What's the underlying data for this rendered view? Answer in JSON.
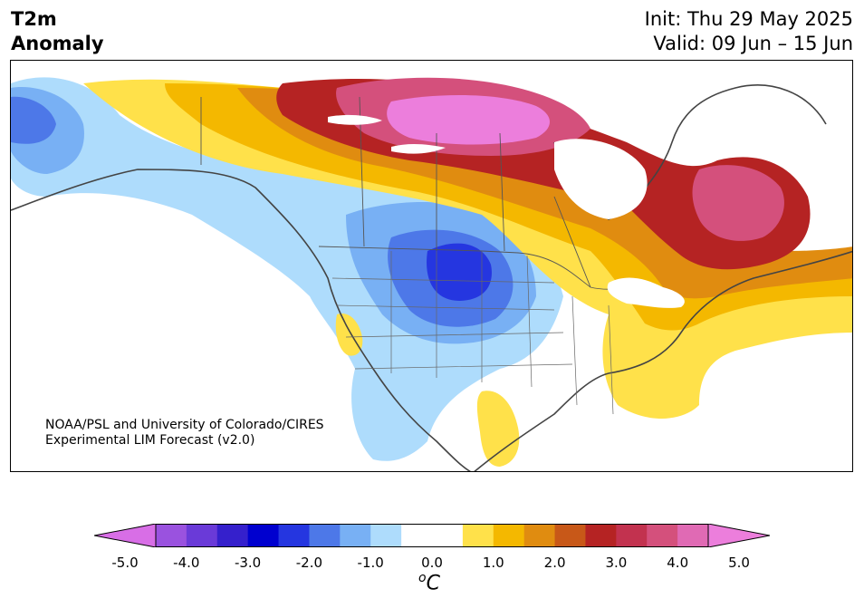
{
  "header": {
    "variable": "T2m",
    "subtitle": "Anomaly",
    "init": "Init: Thu 29 May 2025",
    "valid": "Valid: 09 Jun – 15 Jun"
  },
  "credit": {
    "line1": "NOAA/PSL and University of Colorado/CIRES",
    "line2": "Experimental LIM Forecast (v2.0)"
  },
  "colorbar": {
    "unit_o": "o",
    "unit_c": "C",
    "ticks": [
      "-5.0",
      "-4.0",
      "-3.0",
      "-2.0",
      "-1.0",
      "0.0",
      "1.0",
      "2.0",
      "3.0",
      "4.0",
      "5.0"
    ],
    "colors": [
      "#d86ee6",
      "#9a52df",
      "#6a3ad8",
      "#3520cc",
      "#0000cf",
      "#2536e0",
      "#4d78e8",
      "#78b0f4",
      "#aedcfc",
      "#ffffff",
      "#ffffff",
      "#ffe14a",
      "#f4b800",
      "#e08c10",
      "#c85818",
      "#b52323",
      "#c2324f",
      "#d4507c",
      "#e06ab4",
      "#ec7edc"
    ]
  }
}
